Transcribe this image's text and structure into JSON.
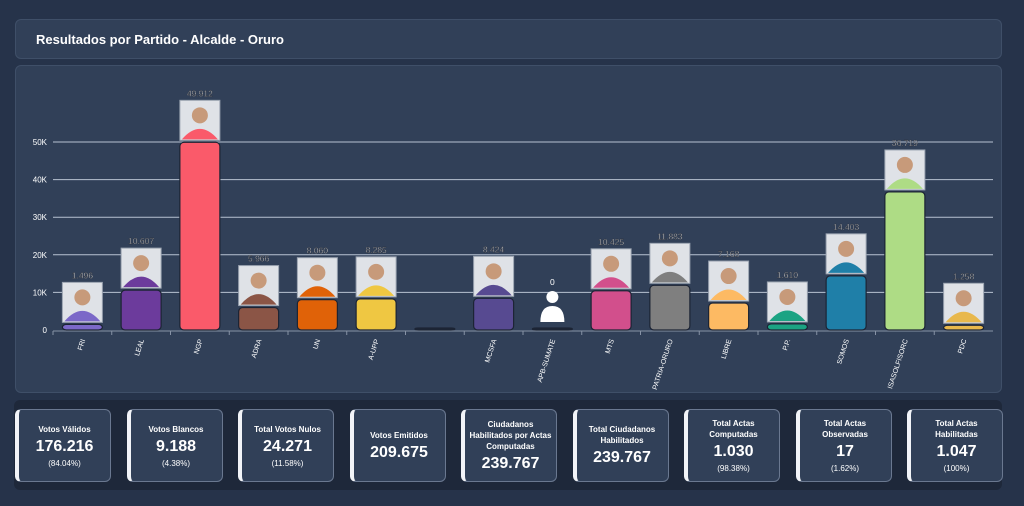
{
  "header": {
    "title": "Resultados por Partido - Alcalde - Oruro"
  },
  "chart_data": {
    "type": "bar",
    "title": "",
    "xlabel": "",
    "ylabel": "",
    "ylim": [
      0,
      55000
    ],
    "yticks": [
      0,
      10000,
      20000,
      30000,
      40000,
      50000
    ],
    "ytick_labels": [
      "0",
      "10K",
      "20K",
      "30K",
      "40K",
      "50K"
    ],
    "grid": true,
    "categories": [
      "FRI",
      "LEAL",
      "NGP",
      "ADRA",
      "UN",
      "A-UPP",
      "",
      "MCSFA",
      "APB-SUMATE",
      "MTS",
      "PATRIA-ORURO",
      "LIBRE",
      "P.P.",
      "SOMOS",
      "ISASOLFISORC",
      "PDC"
    ],
    "values": [
      1496,
      10607,
      49912,
      5966,
      8060,
      8285,
      null,
      8424,
      0,
      10425,
      11883,
      7168,
      1610,
      14403,
      36719,
      1258
    ],
    "value_labels": [
      "1.496",
      "10.607",
      "49.912",
      "5.966",
      "8.060",
      "8.285",
      "",
      "8.424",
      "0",
      "10.425",
      "11.883",
      "7.168",
      "1.610",
      "14.403",
      "36.719",
      "1.258"
    ],
    "colors": [
      "#7b68c8",
      "#6c3b9c",
      "#fa5a6a",
      "#8b5546",
      "#e06208",
      "#efc742",
      "#1c2434",
      "#574a91",
      "#1c2434",
      "#d24f8c",
      "#7f7f7f",
      "#fdba63",
      "#1ba383",
      "#1f7fa8",
      "#aedc85",
      "#e8b84c"
    ]
  },
  "cards": [
    {
      "label": "Votos Válidos",
      "value": "176.216",
      "pct": "(84.04%)"
    },
    {
      "label": "Votos Blancos",
      "value": "9.188",
      "pct": "(4.38%)"
    },
    {
      "label": "Total Votos Nulos",
      "value": "24.271",
      "pct": "(11.58%)"
    },
    {
      "label": "Votos Emitidos",
      "value": "209.675",
      "pct": null
    },
    {
      "label": "Ciudadanos Habilitados por Actas Computadas",
      "value": "239.767",
      "pct": null
    },
    {
      "label": "Total Ciudadanos Habilitados",
      "value": "239.767",
      "pct": null
    },
    {
      "label": "Total Actas Computadas",
      "value": "1.030",
      "pct": "(98.38%)"
    },
    {
      "label": "Total Actas Observadas",
      "value": "17",
      "pct": "(1.62%)"
    },
    {
      "label": "Total Actas Habilitadas",
      "value": "1.047",
      "pct": "(100%)"
    }
  ]
}
